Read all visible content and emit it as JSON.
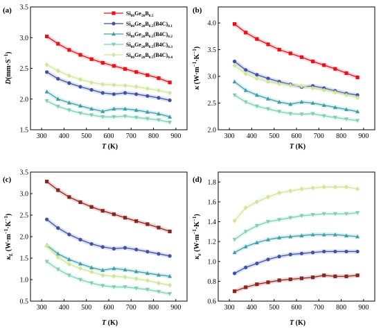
{
  "panels": [
    {
      "label": "(a)",
      "ylabel_sym": "D",
      "ylabel_unit": "(mm·S",
      "ylabel_sup": "−1",
      "ylabel_close": ")",
      "xlabel_sym": "T",
      "xlabel_unit": " (K)"
    },
    {
      "label": "(b)",
      "ylabel_sym": "κ",
      "ylabel_unit": " (W·m",
      "ylabel_sup": "−1",
      "ylabel_mid": "·K",
      "ylabel_sup2": "−1",
      "ylabel_close": ")",
      "xlabel_sym": "T",
      "xlabel_unit": " (K)"
    },
    {
      "label": "(c)",
      "ylabel_sym": "κ",
      "ylabel_sub": "L",
      "ylabel_unit": " (W·m",
      "ylabel_sup": "−1",
      "ylabel_mid": "·K",
      "ylabel_sup2": "−1",
      "ylabel_close": ")",
      "xlabel_sym": "T",
      "xlabel_unit": " (K)"
    },
    {
      "label": "(d)",
      "ylabel_sym": "κ",
      "ylabel_sub": "e",
      "ylabel_unit": " (W·m",
      "ylabel_sup": "−1",
      "ylabel_mid": "·K",
      "ylabel_sup2": "−1",
      "ylabel_close": ")",
      "xlabel_sym": "T",
      "xlabel_unit": " (K)"
    }
  ],
  "legend": [
    {
      "base": "Si",
      "s1": "80",
      "mid": "Ge",
      "s2": "20",
      "end": "B",
      "s3": "0.5",
      "tail": "",
      "s4": ""
    },
    {
      "base": "Si",
      "s1": "80",
      "mid": "Ge",
      "s2": "20",
      "end": "B",
      "s3": "0.5",
      "tail": "(B4C)",
      "s4": "0.1"
    },
    {
      "base": "Si",
      "s1": "80",
      "mid": "Ge",
      "s2": "20",
      "end": "B",
      "s3": "0.5",
      "tail": "(B4C)",
      "s4": "0.2"
    },
    {
      "base": "Si",
      "s1": "80",
      "mid": "Ge",
      "s2": "20",
      "end": "B",
      "s3": "0.5",
      "tail": "(B4C)",
      "s4": "0.3"
    },
    {
      "base": "Si",
      "s1": "80",
      "mid": "Ge",
      "s2": "20",
      "end": "B",
      "s3": "0.5",
      "tail": "(B4C)",
      "s4": "0.4"
    }
  ],
  "chart_data": [
    {
      "type": "line",
      "title": "(a)",
      "xlabel": "T (K)",
      "ylabel": "D (mm·S−1)",
      "xlim": [
        250,
        950
      ],
      "ylim": [
        1.5,
        3.5
      ],
      "xticks": [
        300,
        400,
        500,
        600,
        700,
        800,
        900
      ],
      "yticks": [
        1.5,
        2.0,
        2.5,
        3.0,
        3.5
      ],
      "x": [
        323,
        373,
        423,
        473,
        523,
        573,
        623,
        673,
        723,
        773,
        823,
        873
      ],
      "series": [
        {
          "name": "Si80Ge20B0.5",
          "color": "#e8101b",
          "marker": "square",
          "values": [
            3.02,
            2.9,
            2.8,
            2.72,
            2.65,
            2.59,
            2.54,
            2.49,
            2.44,
            2.39,
            2.34,
            2.27
          ]
        },
        {
          "name": "Si80Ge20B0.5(B4C)0.1",
          "color": "#3d52a1",
          "marker": "circle",
          "values": [
            2.44,
            2.33,
            2.26,
            2.2,
            2.15,
            2.1,
            2.08,
            2.1,
            2.08,
            2.05,
            2.02,
            1.98
          ]
        },
        {
          "name": "Si80Ge20B0.5(B4C)0.2",
          "color": "#3d9ea5",
          "marker": "triangle-up",
          "values": [
            2.12,
            2.0,
            1.94,
            1.89,
            1.84,
            1.8,
            1.84,
            1.84,
            1.82,
            1.79,
            1.76,
            1.71
          ]
        },
        {
          "name": "Si80Ge20B0.5(B4C)0.3",
          "color": "#7ecfb4",
          "marker": "triangle-down",
          "values": [
            1.97,
            1.88,
            1.82,
            1.77,
            1.74,
            1.71,
            1.71,
            1.72,
            1.7,
            1.68,
            1.66,
            1.62
          ]
        },
        {
          "name": "Si80Ge20B0.5(B4C)0.4",
          "color": "#cfe69a",
          "marker": "diamond",
          "values": [
            2.56,
            2.46,
            2.38,
            2.32,
            2.27,
            2.24,
            2.23,
            2.22,
            2.2,
            2.17,
            2.14,
            2.1
          ]
        }
      ]
    },
    {
      "type": "line",
      "title": "(b)",
      "xlabel": "T (K)",
      "ylabel": "κ (W·m−1·K−1)",
      "xlim": [
        250,
        950
      ],
      "ylim": [
        2.0,
        4.3
      ],
      "xticks": [
        300,
        400,
        500,
        600,
        700,
        800,
        900
      ],
      "yticks": [
        2.0,
        2.5,
        3.0,
        3.5,
        4.0
      ],
      "x": [
        323,
        373,
        423,
        473,
        523,
        573,
        623,
        673,
        723,
        773,
        823,
        873
      ],
      "series": [
        {
          "name": "Si80Ge20B0.5",
          "color": "#e8101b",
          "marker": "square",
          "values": [
            3.98,
            3.82,
            3.7,
            3.6,
            3.5,
            3.43,
            3.36,
            3.28,
            3.21,
            3.14,
            3.06,
            2.98
          ]
        },
        {
          "name": "Si80Ge20B0.5(B4C)0.1",
          "color": "#3d52a1",
          "marker": "circle",
          "values": [
            3.28,
            3.12,
            3.03,
            2.96,
            2.9,
            2.85,
            2.8,
            2.82,
            2.78,
            2.73,
            2.68,
            2.65
          ]
        },
        {
          "name": "Si80Ge20B0.5(B4C)0.2",
          "color": "#3d9ea5",
          "marker": "triangle-up",
          "values": [
            2.9,
            2.74,
            2.65,
            2.58,
            2.52,
            2.48,
            2.52,
            2.5,
            2.46,
            2.42,
            2.38,
            2.34
          ]
        },
        {
          "name": "Si80Ge20B0.5(B4C)0.3",
          "color": "#7ecfb4",
          "marker": "triangle-down",
          "values": [
            2.65,
            2.52,
            2.44,
            2.39,
            2.34,
            2.3,
            2.29,
            2.3,
            2.26,
            2.23,
            2.2,
            2.17
          ]
        },
        {
          "name": "Si80Ge20B0.5(B4C)0.4",
          "color": "#cfe69a",
          "marker": "diamond",
          "values": [
            3.2,
            3.05,
            2.96,
            2.9,
            2.86,
            2.83,
            2.82,
            2.78,
            2.74,
            2.7,
            2.65,
            2.6
          ]
        }
      ]
    },
    {
      "type": "line",
      "title": "(c)",
      "xlabel": "T (K)",
      "ylabel": "κL (W·m−1·K−1)",
      "xlim": [
        250,
        950
      ],
      "ylim": [
        0.5,
        3.5
      ],
      "xticks": [
        300,
        400,
        500,
        600,
        700,
        800,
        900
      ],
      "yticks": [
        0.5,
        1.0,
        1.5,
        2.0,
        2.5,
        3.0,
        3.5
      ],
      "x": [
        323,
        373,
        423,
        473,
        523,
        573,
        623,
        673,
        723,
        773,
        823,
        873
      ],
      "series": [
        {
          "name": "Si80Ge20B0.5",
          "color": "#8b2420",
          "marker": "square",
          "values": [
            3.28,
            3.08,
            2.92,
            2.8,
            2.69,
            2.6,
            2.52,
            2.44,
            2.36,
            2.29,
            2.21,
            2.12
          ]
        },
        {
          "name": "Si80Ge20B0.5(B4C)0.1",
          "color": "#3d52a1",
          "marker": "circle",
          "values": [
            2.4,
            2.2,
            2.05,
            1.93,
            1.83,
            1.76,
            1.72,
            1.74,
            1.7,
            1.65,
            1.6,
            1.55
          ]
        },
        {
          "name": "Si80Ge20B0.5(B4C)0.2",
          "color": "#3d9ea5",
          "marker": "triangle-up",
          "values": [
            1.8,
            1.6,
            1.47,
            1.37,
            1.28,
            1.22,
            1.26,
            1.23,
            1.19,
            1.15,
            1.11,
            1.08
          ]
        },
        {
          "name": "Si80Ge20B0.5(B4C)0.3",
          "color": "#7ecfb4",
          "marker": "triangle-down",
          "values": [
            1.42,
            1.24,
            1.1,
            1.0,
            0.92,
            0.86,
            0.83,
            0.83,
            0.8,
            0.77,
            0.72,
            0.67
          ]
        },
        {
          "name": "Si80Ge20B0.5(B4C)0.4",
          "color": "#cfe69a",
          "marker": "diamond",
          "values": [
            1.78,
            1.52,
            1.36,
            1.26,
            1.18,
            1.1,
            1.08,
            1.06,
            1.02,
            0.98,
            0.92,
            0.87
          ]
        }
      ]
    },
    {
      "type": "line",
      "title": "(d)",
      "xlabel": "T (K)",
      "ylabel": "κe (W·m−1·K−1)",
      "xlim": [
        250,
        950
      ],
      "ylim": [
        0.6,
        1.9
      ],
      "xticks": [
        300,
        400,
        500,
        600,
        700,
        800,
        900
      ],
      "yticks": [
        0.6,
        0.8,
        1.0,
        1.2,
        1.4,
        1.6,
        1.8
      ],
      "x": [
        323,
        373,
        423,
        473,
        523,
        573,
        623,
        673,
        723,
        773,
        823,
        873
      ],
      "series": [
        {
          "name": "Si80Ge20B0.5",
          "color": "#8b2420",
          "marker": "square",
          "values": [
            0.7,
            0.74,
            0.77,
            0.79,
            0.81,
            0.82,
            0.83,
            0.84,
            0.86,
            0.85,
            0.85,
            0.86
          ]
        },
        {
          "name": "Si80Ge20B0.5(B4C)0.1",
          "color": "#3d52a1",
          "marker": "circle",
          "values": [
            0.88,
            0.94,
            0.98,
            1.02,
            1.05,
            1.07,
            1.08,
            1.09,
            1.1,
            1.1,
            1.1,
            1.1
          ]
        },
        {
          "name": "Si80Ge20B0.5(B4C)0.2",
          "color": "#3d9ea5",
          "marker": "triangle-up",
          "values": [
            1.09,
            1.15,
            1.19,
            1.22,
            1.24,
            1.25,
            1.26,
            1.27,
            1.27,
            1.27,
            1.26,
            1.25
          ]
        },
        {
          "name": "Si80Ge20B0.5(B4C)0.3",
          "color": "#7ecfb4",
          "marker": "triangle-down",
          "values": [
            1.22,
            1.3,
            1.36,
            1.4,
            1.42,
            1.44,
            1.46,
            1.47,
            1.48,
            1.48,
            1.48,
            1.49
          ]
        },
        {
          "name": "Si80Ge20B0.5(B4C)0.4",
          "color": "#cfe69a",
          "marker": "diamond",
          "values": [
            1.41,
            1.54,
            1.6,
            1.65,
            1.69,
            1.71,
            1.73,
            1.74,
            1.75,
            1.75,
            1.75,
            1.73
          ]
        }
      ]
    }
  ]
}
